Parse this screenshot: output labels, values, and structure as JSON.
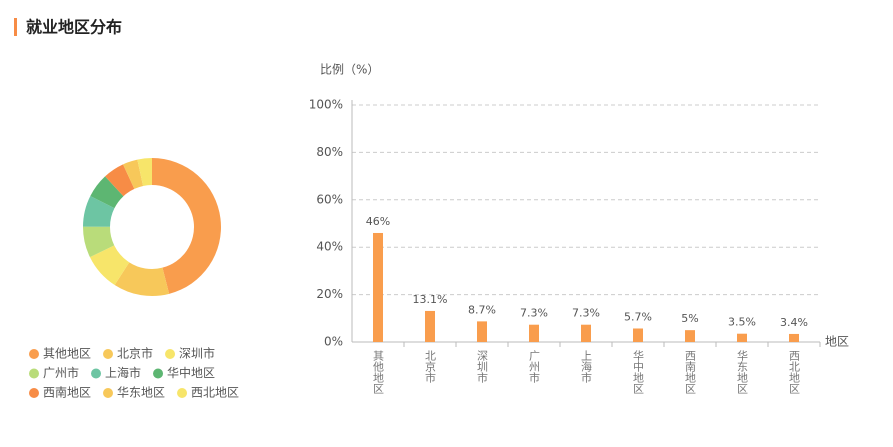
{
  "header": {
    "title": "就业地区分布"
  },
  "chart_data": [
    {
      "type": "pie",
      "categories": [
        "其他地区",
        "北京市",
        "深圳市",
        "广州市",
        "上海市",
        "华中地区",
        "西南地区",
        "华东地区",
        "西北地区"
      ],
      "values": [
        46,
        13.1,
        8.7,
        7.3,
        7.3,
        5.7,
        5,
        3.5,
        3.4
      ],
      "colors": [
        "#f99d4d",
        "#f7c85a",
        "#f7e56a",
        "#b9dc7a",
        "#6dc5a3",
        "#5db672",
        "#f78c46",
        "#f7c85a",
        "#f7e56a"
      ],
      "legend": "bottom"
    },
    {
      "type": "bar",
      "y_label": "比例（%）",
      "x_label": "地区",
      "categories": [
        "其他地区",
        "北京市",
        "深圳市",
        "广州市",
        "上海市",
        "华中地区",
        "西南地区",
        "华东地区",
        "西北地区"
      ],
      "values": [
        46,
        13.1,
        8.7,
        7.3,
        7.3,
        5.7,
        5,
        3.5,
        3.4
      ],
      "value_labels": [
        "46%",
        "13.1%",
        "8.7%",
        "7.3%",
        "7.3%",
        "5.7%",
        "5%",
        "3.5%",
        "3.4%"
      ],
      "color": "#f99d4d",
      "ylim": [
        0,
        100
      ],
      "yticks": [
        {
          "value": 0,
          "label": "0%"
        },
        {
          "value": 20,
          "label": "20%"
        },
        {
          "value": 40,
          "label": "40%"
        },
        {
          "value": 60,
          "label": "60%"
        },
        {
          "value": 80,
          "label": "80%"
        },
        {
          "value": 100,
          "label": "100%"
        }
      ],
      "grid": true
    }
  ]
}
